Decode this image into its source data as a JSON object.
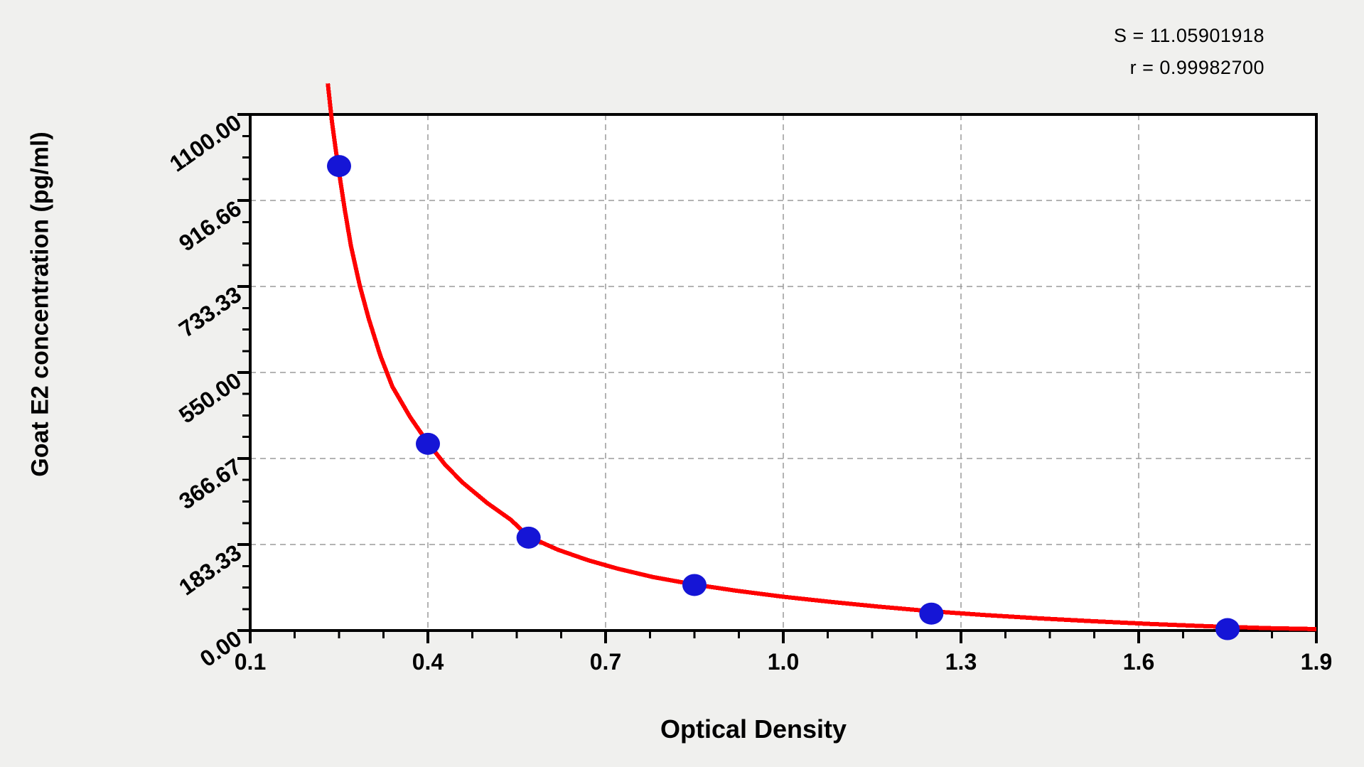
{
  "header": {
    "stat_s": "S = 11.05901918",
    "stat_r": "r = 0.99982700"
  },
  "chart_data": {
    "type": "scatter",
    "title": "",
    "xlabel": "Optical Density",
    "ylabel": "Goat E2 concentration (pg/ml)",
    "xlim": [
      0.1,
      1.9
    ],
    "ylim": [
      0,
      1100
    ],
    "x_ticks": [
      0.1,
      0.4,
      0.7,
      1.0,
      1.3,
      1.6,
      1.9
    ],
    "x_tick_labels": [
      "0.1",
      "0.4",
      "0.7",
      "1.0",
      "1.3",
      "1.6",
      "1.9"
    ],
    "y_ticks": [
      0,
      183.33,
      366.67,
      550.0,
      733.33,
      916.66,
      1100.0
    ],
    "y_tick_labels": [
      "0.00",
      "183.33",
      "366.67",
      "550.00",
      "733.33",
      "916.66",
      "1100.00"
    ],
    "x_minor_divisions": 4,
    "y_minor_divisions": 4,
    "grid": "dashed gridlines at major ticks, both axes",
    "legend_position": "none",
    "annotations": [
      "S = 11.05901918",
      "r = 0.99982700"
    ],
    "series": [
      {
        "name": "standard-points",
        "kind": "scatter",
        "x": [
          0.25,
          0.4,
          0.57,
          0.85,
          1.25,
          1.75
        ],
        "y": [
          990,
          398,
          198,
          97,
          36,
          3
        ]
      },
      {
        "name": "fitted-curve",
        "kind": "line",
        "points": [
          [
            0.231,
            1166
          ],
          [
            0.238,
            1085
          ],
          [
            0.245,
            1020
          ],
          [
            0.252,
            960
          ],
          [
            0.26,
            895
          ],
          [
            0.27,
            820
          ],
          [
            0.285,
            735
          ],
          [
            0.3,
            665
          ],
          [
            0.32,
            585
          ],
          [
            0.34,
            520
          ],
          [
            0.37,
            455
          ],
          [
            0.4,
            400
          ],
          [
            0.43,
            352
          ],
          [
            0.46,
            314
          ],
          [
            0.5,
            272
          ],
          [
            0.54,
            236
          ],
          [
            0.57,
            200
          ],
          [
            0.62,
            172
          ],
          [
            0.67,
            150
          ],
          [
            0.72,
            132
          ],
          [
            0.78,
            114
          ],
          [
            0.85,
            98
          ],
          [
            0.92,
            85
          ],
          [
            1.0,
            72
          ],
          [
            1.08,
            61
          ],
          [
            1.16,
            51
          ],
          [
            1.25,
            41
          ],
          [
            1.34,
            33
          ],
          [
            1.43,
            26
          ],
          [
            1.52,
            20
          ],
          [
            1.62,
            14
          ],
          [
            1.72,
            9
          ],
          [
            1.82,
            5
          ],
          [
            1.9,
            3
          ]
        ]
      }
    ],
    "colors": {
      "curve": "#fe0000",
      "points": "#1515d6",
      "axis": "#000000",
      "gridline": "#9a9a9a",
      "plot_background": "#ffffff",
      "figure_background": "#f0f0ee"
    }
  }
}
